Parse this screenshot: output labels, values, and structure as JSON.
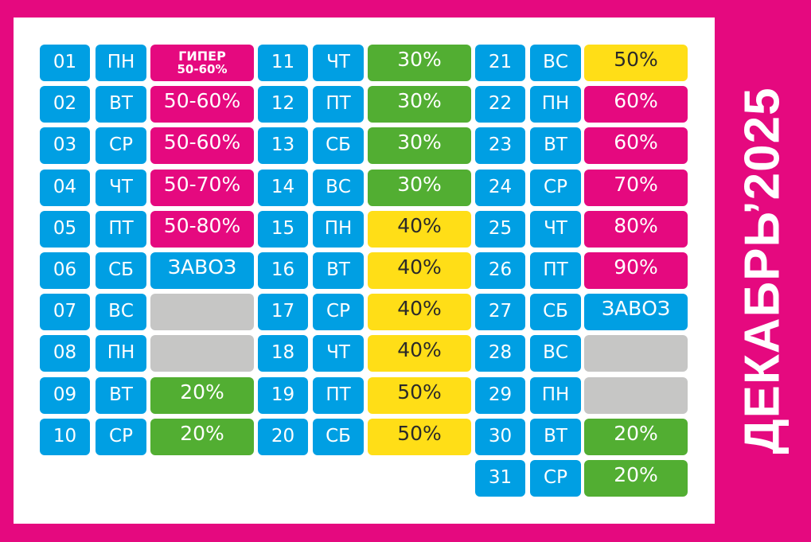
{
  "title": "ДЕКАБРЬ’2025",
  "palette": {
    "blue": "#009FE3",
    "magenta": "#E5097F",
    "green": "#52AE32",
    "yellow": "#FFDE17",
    "gray": "#C6C6C5"
  },
  "columns": [
    [
      {
        "day": "01",
        "weekday": "ПН",
        "value": "ГИПЕР",
        "value2": "50-60%",
        "color": "magenta"
      },
      {
        "day": "02",
        "weekday": "ВТ",
        "value": "50-60%",
        "color": "magenta"
      },
      {
        "day": "03",
        "weekday": "СР",
        "value": "50-60%",
        "color": "magenta"
      },
      {
        "day": "04",
        "weekday": "ЧТ",
        "value": "50-70%",
        "color": "magenta"
      },
      {
        "day": "05",
        "weekday": "ПТ",
        "value": "50-80%",
        "color": "magenta"
      },
      {
        "day": "06",
        "weekday": "СБ",
        "value": "ЗАВОЗ",
        "color": "blue"
      },
      {
        "day": "07",
        "weekday": "ВС",
        "value": "",
        "color": "gray"
      },
      {
        "day": "08",
        "weekday": "ПН",
        "value": "",
        "color": "gray"
      },
      {
        "day": "09",
        "weekday": "ВТ",
        "value": "20%",
        "color": "green"
      },
      {
        "day": "10",
        "weekday": "СР",
        "value": "20%",
        "color": "green"
      }
    ],
    [
      {
        "day": "11",
        "weekday": "ЧТ",
        "value": "30%",
        "color": "green"
      },
      {
        "day": "12",
        "weekday": "ПТ",
        "value": "30%",
        "color": "green"
      },
      {
        "day": "13",
        "weekday": "СБ",
        "value": "30%",
        "color": "green"
      },
      {
        "day": "14",
        "weekday": "ВС",
        "value": "30%",
        "color": "green"
      },
      {
        "day": "15",
        "weekday": "ПН",
        "value": "40%",
        "color": "yellow"
      },
      {
        "day": "16",
        "weekday": "ВТ",
        "value": "40%",
        "color": "yellow"
      },
      {
        "day": "17",
        "weekday": "СР",
        "value": "40%",
        "color": "yellow"
      },
      {
        "day": "18",
        "weekday": "ЧТ",
        "value": "40%",
        "color": "yellow"
      },
      {
        "day": "19",
        "weekday": "ПТ",
        "value": "50%",
        "color": "yellow"
      },
      {
        "day": "20",
        "weekday": "СБ",
        "value": "50%",
        "color": "yellow"
      }
    ],
    [
      {
        "day": "21",
        "weekday": "ВС",
        "value": "50%",
        "color": "yellow"
      },
      {
        "day": "22",
        "weekday": "ПН",
        "value": "60%",
        "color": "magenta"
      },
      {
        "day": "23",
        "weekday": "ВТ",
        "value": "60%",
        "color": "magenta"
      },
      {
        "day": "24",
        "weekday": "СР",
        "value": "70%",
        "color": "magenta"
      },
      {
        "day": "25",
        "weekday": "ЧТ",
        "value": "80%",
        "color": "magenta"
      },
      {
        "day": "26",
        "weekday": "ПТ",
        "value": "90%",
        "color": "magenta"
      },
      {
        "day": "27",
        "weekday": "СБ",
        "value": "ЗАВОЗ",
        "color": "blue"
      },
      {
        "day": "28",
        "weekday": "ВС",
        "value": "",
        "color": "gray"
      },
      {
        "day": "29",
        "weekday": "ПН",
        "value": "",
        "color": "gray"
      },
      {
        "day": "30",
        "weekday": "ВТ",
        "value": "20%",
        "color": "green"
      },
      {
        "day": "31",
        "weekday": "СР",
        "value": "20%",
        "color": "green"
      }
    ]
  ]
}
